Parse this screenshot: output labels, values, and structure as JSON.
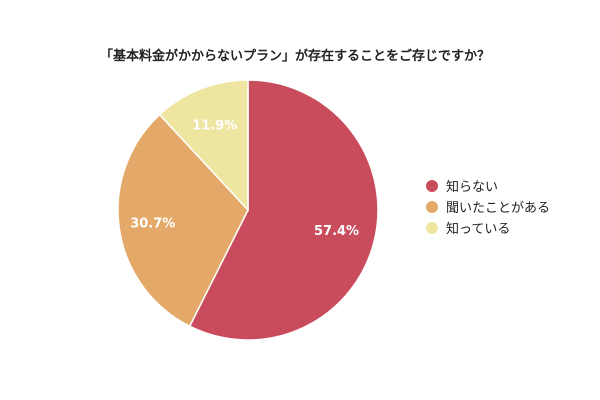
{
  "chart_data": {
    "type": "pie",
    "title": "「基本料金がかからないプラン」が存在することをご存じですか？",
    "start_angle_deg": 0,
    "direction": "clockwise",
    "slices": [
      {
        "label": "知らない",
        "value": 57.4,
        "display": "57.4%",
        "color": "#c94c5c"
      },
      {
        "label": "聞いたことがある",
        "value": 30.7,
        "display": "30.7%",
        "color": "#e4a968"
      },
      {
        "label": "知っている",
        "value": 11.9,
        "display": "11.9%",
        "color": "#ede5a0"
      }
    ],
    "legend": {
      "position": "right"
    }
  }
}
